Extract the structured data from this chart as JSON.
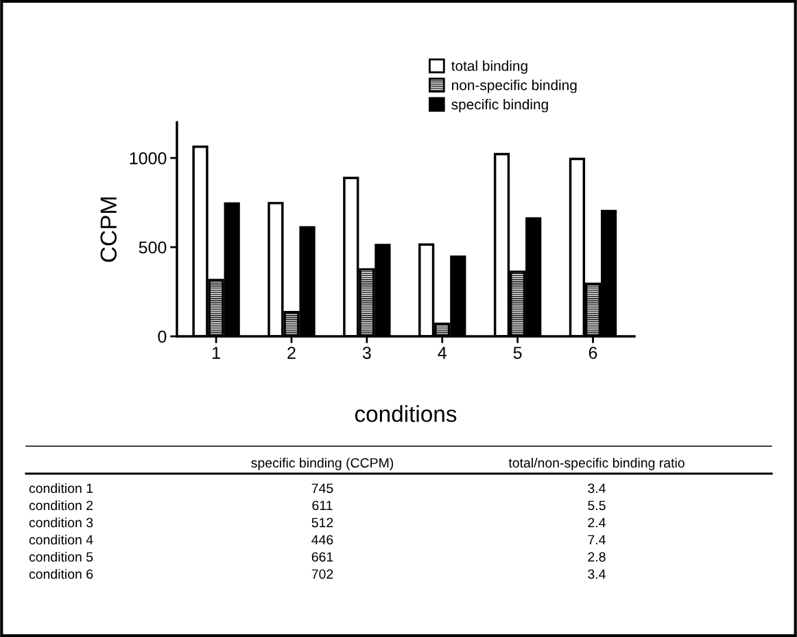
{
  "chart_data": {
    "type": "bar",
    "xlabel": "conditions",
    "ylabel": "CCPM",
    "categories": [
      "1",
      "2",
      "3",
      "4",
      "5",
      "6"
    ],
    "series": [
      {
        "name": "total binding",
        "color": "#ffffff",
        "values": [
          1063,
          747,
          888,
          515,
          1022,
          995
        ]
      },
      {
        "name": "non-specific binding",
        "color": "#000000",
        "values": [
          316,
          136,
          375,
          70,
          362,
          294
        ]
      },
      {
        "name": "specific binding",
        "color": "#000000",
        "values": [
          745,
          611,
          512,
          446,
          661,
          702
        ]
      }
    ],
    "ylim": [
      0,
      1200
    ],
    "yticks": [
      0,
      500,
      1000
    ],
    "legend": "top",
    "grid": false,
    "annotations": [
      "specific binding (CCPM)",
      "total/non-specific binding ratio",
      "condition 1",
      "745",
      "3.4",
      "condition 2",
      "611",
      "5.5",
      "condition 3",
      "512",
      "2.4",
      "condition 4",
      "446",
      "7.4",
      "condition 5",
      "661",
      "2.8",
      "condition 6",
      "702",
      "3.4"
    ]
  }
}
